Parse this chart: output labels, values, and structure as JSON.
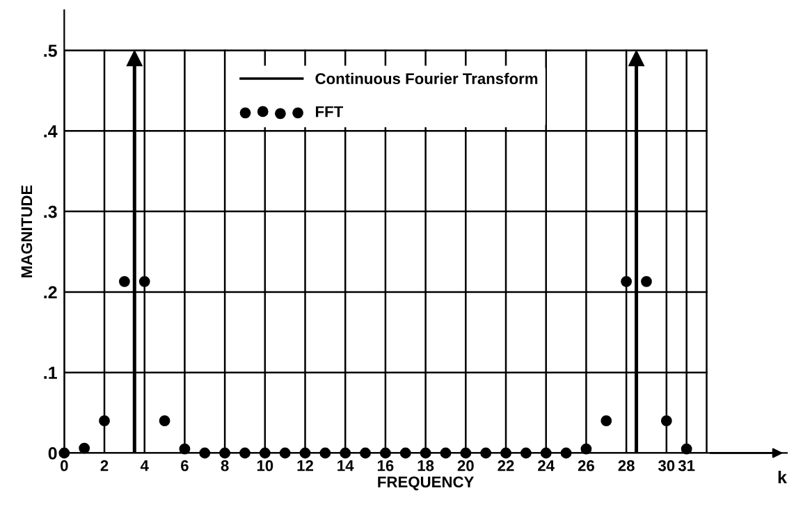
{
  "chart_data": {
    "type": "scatter",
    "xlabel": "FREQUENCY",
    "ylabel": "MAGNITUDE",
    "xlim": [
      0,
      36
    ],
    "ylim": [
      0,
      0.55
    ],
    "xticks": [
      0,
      2,
      4,
      6,
      8,
      10,
      12,
      14,
      16,
      18,
      20,
      22,
      24,
      26,
      28,
      30,
      31,
      {
        "value": 32,
        "label": null
      }
    ],
    "yticks": [
      {
        "value": 0,
        "label": "0"
      },
      {
        "value": 0.1,
        "label": ".1"
      },
      {
        "value": 0.2,
        "label": ".2"
      },
      {
        "value": 0.3,
        "label": ".3"
      },
      {
        "value": 0.4,
        "label": ".4"
      },
      {
        "value": 0.5,
        "label": ".5"
      }
    ],
    "grid": true,
    "legend": "top",
    "annotations": [
      "k"
    ],
    "series": [
      {
        "name": "Continuous Fourier Transform",
        "type": "lollipop",
        "color": "#000000",
        "marker": "triangle",
        "x": [
          3.5,
          28.5
        ],
        "values": [
          0.49,
          0.49
        ]
      },
      {
        "name": "FFT",
        "color": "#000000",
        "marker": "circle",
        "x": [
          0,
          1,
          2,
          3,
          4,
          5,
          6,
          7,
          8,
          9,
          10,
          11,
          12,
          13,
          14,
          15,
          16,
          17,
          18,
          19,
          20,
          21,
          22,
          23,
          24,
          25,
          26,
          27,
          28,
          29,
          30,
          31
        ],
        "values": [
          0,
          0.006,
          0.04,
          0.213,
          0.213,
          0.04,
          0.005,
          0,
          0,
          0,
          0,
          0,
          0,
          0,
          0,
          0,
          0,
          0,
          0,
          0,
          0,
          0,
          0,
          0,
          0,
          0,
          0.005,
          0.04,
          0.213,
          0.213,
          0.04,
          0.005
        ]
      }
    ]
  }
}
